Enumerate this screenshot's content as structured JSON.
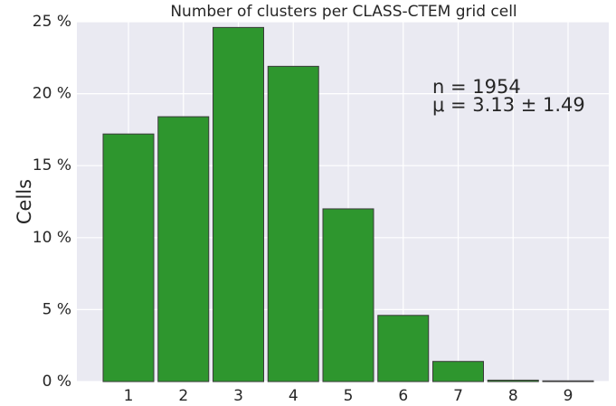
{
  "chart_data": {
    "type": "bar",
    "title": "Number of clusters per CLASS-CTEM grid cell",
    "ylabel": "Cells",
    "categories": [
      "1",
      "2",
      "3",
      "4",
      "5",
      "6",
      "7",
      "8",
      "9"
    ],
    "values": [
      17.2,
      18.4,
      24.6,
      21.9,
      12.0,
      4.6,
      1.4,
      0.1,
      0.05
    ],
    "color": "#2e962e",
    "ylim": [
      0,
      25
    ],
    "yticks": [
      {
        "value": 0,
        "label": "0 %"
      },
      {
        "value": 5,
        "label": "5 %"
      },
      {
        "value": 10,
        "label": "10 %"
      },
      {
        "value": 15,
        "label": "15 %"
      },
      {
        "value": 20,
        "label": "20 %"
      },
      {
        "value": 25,
        "label": "25 %"
      }
    ],
    "grid": true,
    "annotations": [
      "n = 1954",
      "μ = 3.13 ± 1.49"
    ]
  }
}
